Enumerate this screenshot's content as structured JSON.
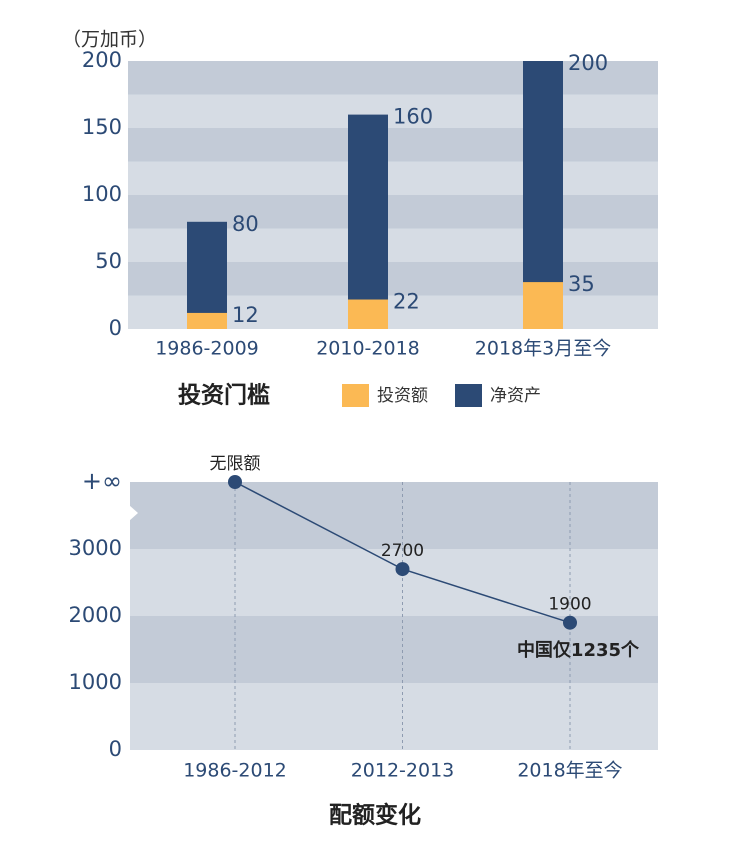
{
  "chart_data": [
    {
      "type": "bar",
      "unit": "（万加币）",
      "title": "投资门槛",
      "categories": [
        "1986-2009",
        "2010-2018",
        "2018年3月至今"
      ],
      "series": [
        {
          "name": "投资额",
          "color": "#fbb954",
          "values": [
            12,
            22,
            35
          ]
        },
        {
          "name": "净资产",
          "color": "#2c4a75",
          "values": [
            80,
            160,
            200
          ]
        }
      ],
      "ylim": [
        0,
        200
      ],
      "yticks": [
        0,
        50,
        100,
        150,
        200
      ]
    },
    {
      "type": "line",
      "title": "配额变化",
      "categories": [
        "1986-2012",
        "2012-2013",
        "2018年至今"
      ],
      "values": [
        4000,
        2700,
        1900
      ],
      "value_labels": [
        "无限额",
        "2700",
        "1900"
      ],
      "annotation": "中国仅1235个",
      "color": "#2c4a75",
      "ylim": [
        0,
        4000
      ],
      "yticks": [
        0,
        1000,
        2000,
        3000,
        {
          "value": 4000,
          "label": "+∞"
        }
      ]
    }
  ]
}
